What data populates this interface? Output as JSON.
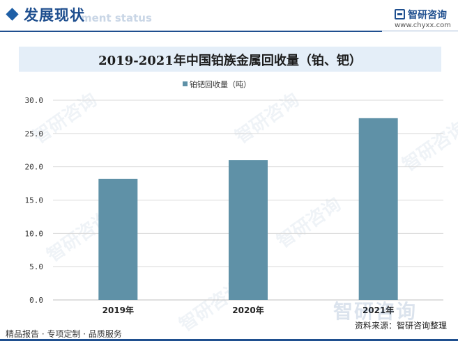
{
  "header": {
    "title": "发展现状",
    "subtitle": "ment status",
    "brand_name": "智研咨询",
    "brand_url": "www.chyxx.com"
  },
  "watermark": {
    "text": "智研咨询"
  },
  "chart_data": {
    "type": "bar",
    "title": "2019-2021年中国铂族金属回收量（铂、钯）",
    "categories": [
      "2019年",
      "2020年",
      "2021年"
    ],
    "series": [
      {
        "name": "铂钯回收量（吨）",
        "values": [
          18.2,
          21.0,
          27.3
        ],
        "color": "#5f91a7"
      }
    ],
    "y_ticks": [
      "0.0",
      "5.0",
      "10.0",
      "15.0",
      "20.0",
      "25.0",
      "30.0"
    ],
    "ylim": [
      0,
      30
    ],
    "grid": true,
    "legend_position": "top-center"
  },
  "footer": {
    "left": "精品报告 · 专项定制 · 品质服务",
    "source": "资料来源：智研咨询整理"
  }
}
